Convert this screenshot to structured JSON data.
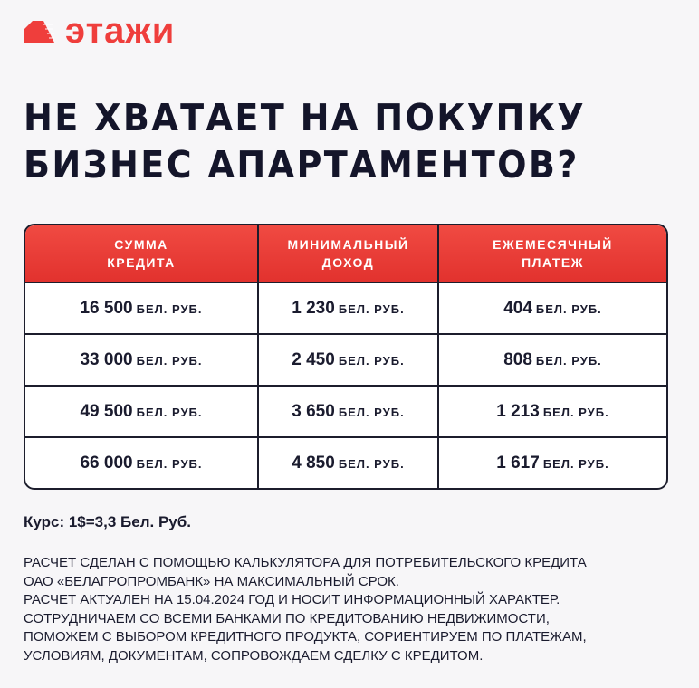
{
  "brand": {
    "name": "этажи",
    "color": "#ef3e3c"
  },
  "title": {
    "line1": "НЕ ХВАТАЕТ НА ПОКУПКУ",
    "line2": "БИЗНЕС АПАРТАМЕНТОВ?"
  },
  "table": {
    "headers": [
      [
        "СУММА",
        "КРЕДИТА"
      ],
      [
        "МИНИМАЛЬНЫЙ",
        "ДОХОД"
      ],
      [
        "ЕЖЕМЕСЯЧНЫЙ",
        "ПЛАТЕЖ"
      ]
    ],
    "unit": "БЕЛ. РУБ.",
    "rows": [
      [
        "16 500",
        "1 230",
        "404"
      ],
      [
        "33 000",
        "2 450",
        "808"
      ],
      [
        "49 500",
        "3 650",
        "1 213"
      ],
      [
        "66 000",
        "4 850",
        "1 617"
      ]
    ]
  },
  "rate": "Курс: 1$=3,3 Бел. Руб.",
  "notes": [
    "РАСЧЕТ СДЕЛАН С ПОМОЩЬЮ КАЛЬКУЛЯТОРА ДЛЯ ПОТРЕБИТЕЛЬСКОГО КРЕДИТА",
    "ОАО «БЕЛАГРОПРОМБАНК» НА МАКСИМАЛЬНЫЙ СРОК.",
    "РАСЧЕТ АКТУАЛЕН НА 15.04.2024 ГОД И НОСИТ ИНФОРМАЦИОННЫЙ ХАРАКТЕР.",
    "СОТРУДНИЧАЕМ СО ВСЕМИ БАНКАМИ ПО КРЕДИТОВАНИЮ НЕДВИЖИМОСТИ,",
    "ПОМОЖЕМ С ВЫБОРОМ КРЕДИТНОГО ПРОДУКТА, СОРИЕНТИРУЕМ ПО ПЛАТЕЖАМ,",
    "УСЛОВИЯМ, ДОКУМЕНТАМ, СОПРОВОЖДАЕМ СДЕЛКУ С КРЕДИТОМ."
  ]
}
